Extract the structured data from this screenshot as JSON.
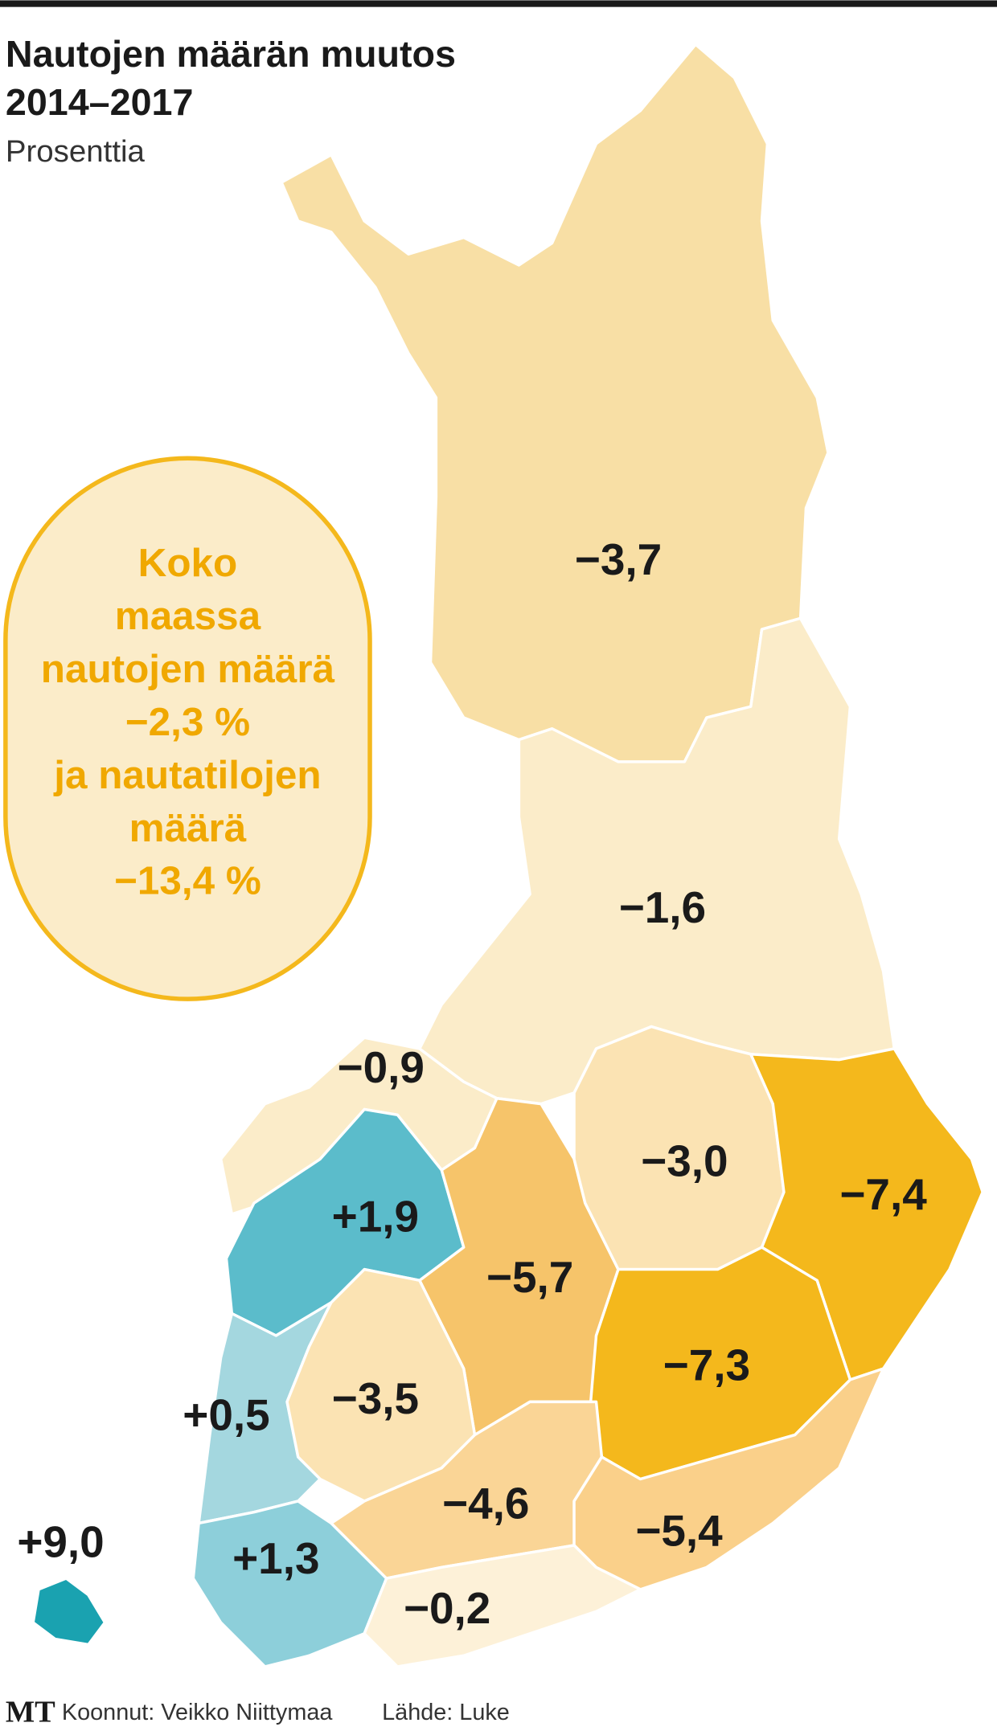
{
  "header": {
    "title_lines": [
      "Nautojen määrän muutos",
      "2014–2017"
    ],
    "subtitle": "Prosenttia"
  },
  "callout": {
    "lines": [
      "Koko",
      "maassa",
      "nautojen määrä",
      "−2,3 %",
      "ja nautatilojen",
      "määrä",
      "−13,4 %"
    ]
  },
  "regions": [
    {
      "label": "−3,7",
      "color": "#f8dfa5"
    },
    {
      "label": "−1,6",
      "color": "#fbecc9"
    },
    {
      "label": "−0,9",
      "color": "#fbecc9"
    },
    {
      "label": "+1,9",
      "color": "#5bbccb"
    },
    {
      "label": "−5,7",
      "color": "#f6c46a"
    },
    {
      "label": "−3,0",
      "color": "#fbe3b3"
    },
    {
      "label": "−7,4",
      "color": "#f4b81c"
    },
    {
      "label": "−7,3",
      "color": "#f4b81c"
    },
    {
      "label": "+0,5",
      "color": "#a4d7df"
    },
    {
      "label": "−3,5",
      "color": "#fbe3b3"
    },
    {
      "label": "+1,3",
      "color": "#8dcfda"
    },
    {
      "label": "−4,6",
      "color": "#fad596"
    },
    {
      "label": "−5,4",
      "color": "#fad08a"
    },
    {
      "label": "−0,2",
      "color": "#fdf1d8"
    },
    {
      "label": "+9,0",
      "color": "#1aa2b0"
    }
  ],
  "footer": {
    "logo": "MT",
    "credit": "Koonnut: Veikko Niittymaa",
    "source": "Lähde: Luke"
  }
}
